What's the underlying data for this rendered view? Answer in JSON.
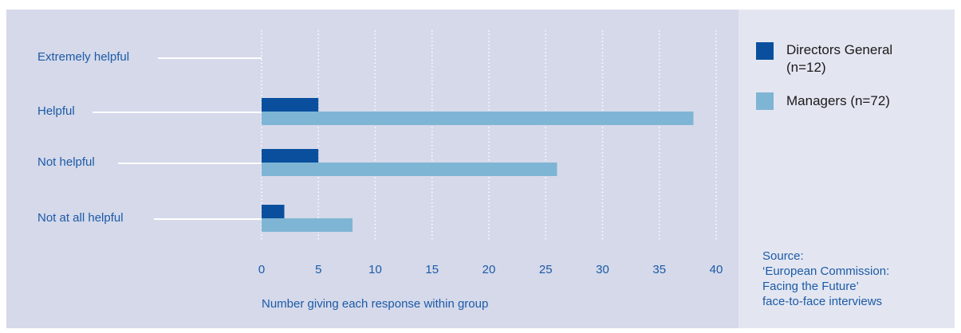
{
  "chart_data": {
    "type": "bar",
    "orientation": "horizontal",
    "categories": [
      "Extremely helpful",
      "Helpful",
      "Not helpful",
      "Not at all helpful"
    ],
    "series": [
      {
        "name": "Directors General\n(n=12)",
        "color": "#0a4f9e",
        "values": [
          0,
          5,
          5,
          2
        ]
      },
      {
        "name": "Managers (n=72)",
        "color": "#7fb5d4",
        "values": [
          0,
          38,
          26,
          8
        ]
      }
    ],
    "xticks": [
      "0",
      "5",
      "10",
      "15",
      "20",
      "25",
      "30",
      "35",
      "40"
    ],
    "xlim": [
      0,
      40
    ],
    "xlabel": "Number giving each response within group",
    "grid": "vertical dotted",
    "legend_position": "right"
  },
  "source": "Source:\n‘European Commission:\nFacing the Future’\nface-to-face interviews"
}
